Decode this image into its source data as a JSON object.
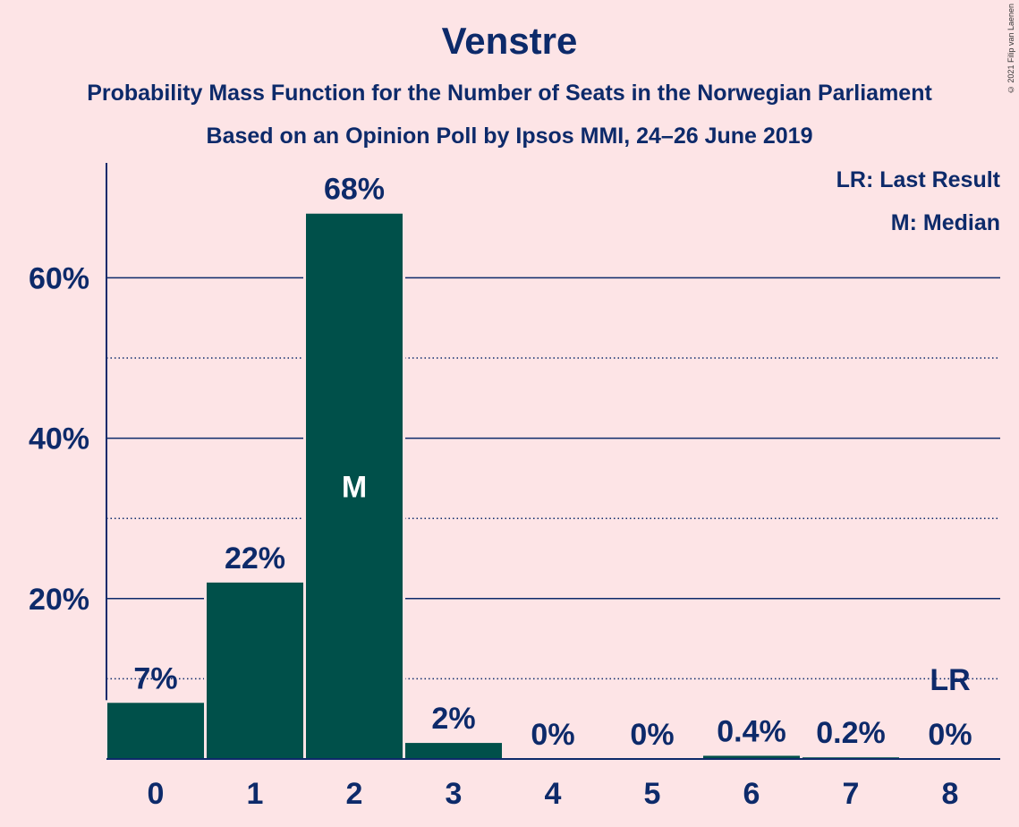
{
  "title": "Venstre",
  "subtitle1": "Probability Mass Function for the Number of Seats in the Norwegian Parliament",
  "subtitle2": "Based on an Opinion Poll by Ipsos MMI, 24–26 June 2019",
  "copyright": "© 2021 Filip van Laenen",
  "legend": {
    "last_result": "LR: Last Result",
    "median": "M: Median"
  },
  "colors": {
    "background": "#fde4e6",
    "bar": "#00504a",
    "text": "#0d2a6a"
  },
  "chart_data": {
    "type": "bar",
    "categories": [
      "0",
      "1",
      "2",
      "3",
      "4",
      "5",
      "6",
      "7",
      "8"
    ],
    "values": [
      7,
      22,
      68,
      2,
      0,
      0,
      0.4,
      0.2,
      0
    ],
    "value_labels": [
      "7%",
      "22%",
      "68%",
      "2%",
      "0%",
      "0%",
      "0.4%",
      "0.2%",
      "0%"
    ],
    "y_ticks": [
      20,
      40,
      60
    ],
    "y_tick_labels": [
      "20%",
      "40%",
      "60%"
    ],
    "y_minor_ticks": [
      10,
      30,
      50
    ],
    "ylim": [
      0,
      74
    ],
    "median_index": 2,
    "median_label": "M",
    "last_result_index": 8,
    "last_result_label": "LR",
    "legend_position": "top-right",
    "grid": true
  }
}
